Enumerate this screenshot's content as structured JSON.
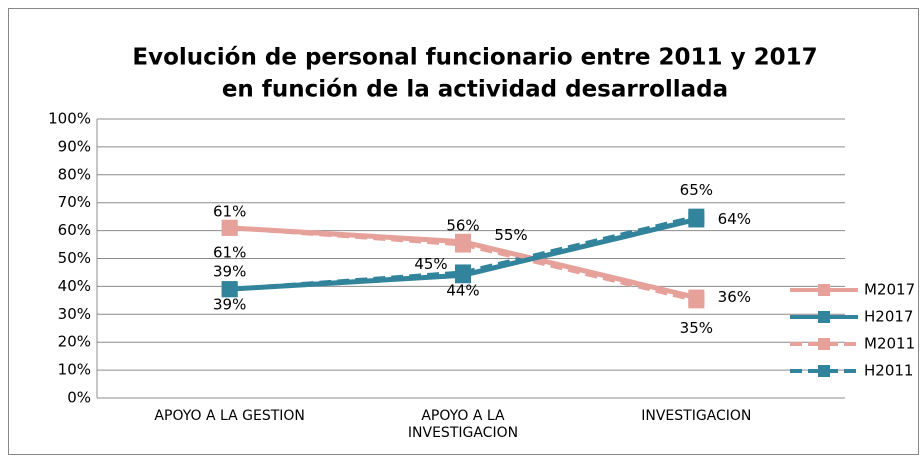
{
  "chart_data": {
    "type": "line",
    "title": [
      "Evolución de personal funcionario entre 2011 y 2017",
      "en función de la actividad desarrollada"
    ],
    "categories": [
      "APOYO A LA GESTION",
      "APOYO A LA INVESTIGACION",
      "INVESTIGACION"
    ],
    "series": [
      {
        "name": "M2017",
        "color": "#e6a19b",
        "dash": false,
        "values": [
          61,
          56,
          36
        ],
        "value_labels": [
          "61%",
          "56%",
          "36%"
        ]
      },
      {
        "name": "H2017",
        "color": "#31849b",
        "dash": false,
        "values": [
          39,
          44,
          64
        ],
        "value_labels": [
          "39%",
          "44%",
          "64%"
        ]
      },
      {
        "name": "M2011",
        "color": "#e6a19b",
        "dash": true,
        "values": [
          61,
          55,
          35
        ],
        "value_labels": [
          "61%",
          "55%",
          "35%"
        ]
      },
      {
        "name": "H2011",
        "color": "#31849b",
        "dash": true,
        "values": [
          39,
          45,
          65
        ],
        "value_labels": [
          "39%",
          "45%",
          "65%"
        ]
      }
    ],
    "ylim": [
      0,
      100
    ],
    "yticks": [
      {
        "value": 0,
        "label": "0%"
      },
      {
        "value": 10,
        "label": "10%"
      },
      {
        "value": 20,
        "label": "20%"
      },
      {
        "value": 30,
        "label": "30%"
      },
      {
        "value": 40,
        "label": "40%"
      },
      {
        "value": 50,
        "label": "50%"
      },
      {
        "value": 60,
        "label": "60%"
      },
      {
        "value": 70,
        "label": "70%"
      },
      {
        "value": 80,
        "label": "80%"
      },
      {
        "value": 90,
        "label": "90%"
      },
      {
        "value": 100,
        "label": "100%"
      }
    ],
    "grid": true,
    "legend": "right"
  }
}
